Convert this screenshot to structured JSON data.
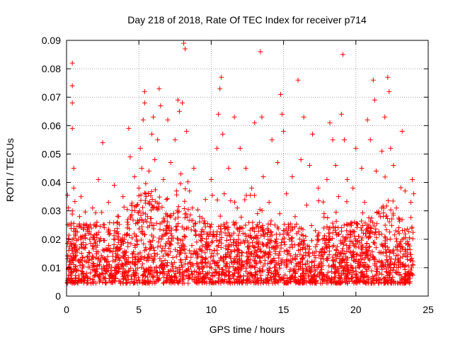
{
  "chart_data": {
    "type": "scatter",
    "title": "Day 218 of 2018, Rate Of TEC Index for receiver p714",
    "xlabel": "GPS time / hours",
    "ylabel": "ROTI / TECUs",
    "xlim": [
      0,
      25
    ],
    "ylim": [
      0,
      0.09
    ],
    "xticks": [
      0,
      5,
      10,
      15,
      20,
      25
    ],
    "xtick_labels": [
      "0",
      "5",
      "10",
      "15",
      "20",
      "25"
    ],
    "yticks": [
      0,
      0.01,
      0.02,
      0.03,
      0.04,
      0.05,
      0.06,
      0.07,
      0.08,
      0.09
    ],
    "ytick_labels": [
      "0",
      "0.01",
      "0.02",
      "0.03",
      "0.04",
      "0.05",
      "0.06",
      "0.07",
      "0.08",
      "0.09"
    ],
    "grid": true,
    "marker": "+",
    "color": "#ff0000",
    "series": [
      {
        "name": "ROTI",
        "points": [
          [
            0.1,
            0.006
          ],
          [
            0.2,
            0.012
          ],
          [
            0.3,
            0.018
          ],
          [
            0.3,
            0.025
          ],
          [
            0.4,
            0.03
          ],
          [
            0.4,
            0.059
          ],
          [
            0.4,
            0.068
          ],
          [
            0.4,
            0.074
          ],
          [
            0.4,
            0.082
          ],
          [
            0.5,
            0.045
          ],
          [
            0.5,
            0.038
          ],
          [
            0.6,
            0.014
          ],
          [
            0.7,
            0.009
          ],
          [
            0.8,
            0.02
          ],
          [
            0.9,
            0.028
          ],
          [
            1.0,
            0.035
          ],
          [
            1.1,
            0.011
          ],
          [
            1.2,
            0.017
          ],
          [
            1.4,
            0.008
          ],
          [
            1.5,
            0.024
          ],
          [
            1.6,
            0.013
          ],
          [
            1.8,
            0.031
          ],
          [
            1.9,
            0.007
          ],
          [
            2.0,
            0.019
          ],
          [
            2.1,
            0.026
          ],
          [
            2.2,
            0.041
          ],
          [
            2.3,
            0.012
          ],
          [
            2.5,
            0.054
          ],
          [
            2.6,
            0.016
          ],
          [
            2.8,
            0.009
          ],
          [
            2.9,
            0.033
          ],
          [
            3.0,
            0.022
          ],
          [
            3.2,
            0.014
          ],
          [
            3.3,
            0.039
          ],
          [
            3.5,
            0.011
          ],
          [
            3.6,
            0.028
          ],
          [
            3.8,
            0.018
          ],
          [
            3.9,
            0.035
          ],
          [
            4.0,
            0.008
          ],
          [
            4.2,
            0.024
          ],
          [
            4.3,
            0.059
          ],
          [
            4.4,
            0.049
          ],
          [
            4.5,
            0.032
          ],
          [
            4.6,
            0.015
          ],
          [
            4.7,
            0.042
          ],
          [
            4.8,
            0.021
          ],
          [
            4.9,
            0.012
          ],
          [
            5.0,
            0.038
          ],
          [
            5.1,
            0.052
          ],
          [
            5.2,
            0.045
          ],
          [
            5.3,
            0.062
          ],
          [
            5.4,
            0.072
          ],
          [
            5.4,
            0.068
          ],
          [
            5.5,
            0.035
          ],
          [
            5.6,
            0.028
          ],
          [
            5.7,
            0.044
          ],
          [
            5.8,
            0.019
          ],
          [
            5.9,
            0.057
          ],
          [
            6.0,
            0.063
          ],
          [
            6.1,
            0.048
          ],
          [
            6.2,
            0.031
          ],
          [
            6.3,
            0.055
          ],
          [
            6.4,
            0.073
          ],
          [
            6.5,
            0.067
          ],
          [
            6.6,
            0.026
          ],
          [
            6.7,
            0.041
          ],
          [
            6.8,
            0.016
          ],
          [
            6.9,
            0.034
          ],
          [
            7.0,
            0.062
          ],
          [
            7.1,
            0.023
          ],
          [
            7.2,
            0.047
          ],
          [
            7.3,
            0.011
          ],
          [
            7.4,
            0.029
          ],
          [
            7.5,
            0.055
          ],
          [
            7.6,
            0.037
          ],
          [
            7.7,
            0.069
          ],
          [
            7.8,
            0.065
          ],
          [
            7.9,
            0.043
          ],
          [
            8.0,
            0.068
          ],
          [
            8.1,
            0.089
          ],
          [
            8.2,
            0.087
          ],
          [
            8.3,
            0.058
          ],
          [
            8.4,
            0.024
          ],
          [
            8.5,
            0.037
          ],
          [
            8.6,
            0.015
          ],
          [
            8.7,
            0.031
          ],
          [
            8.8,
            0.045
          ],
          [
            9.0,
            0.019
          ],
          [
            9.2,
            0.028
          ],
          [
            9.4,
            0.012
          ],
          [
            9.6,
            0.034
          ],
          [
            9.8,
            0.021
          ],
          [
            10.0,
            0.041
          ],
          [
            10.2,
            0.016
          ],
          [
            10.4,
            0.052
          ],
          [
            10.5,
            0.064
          ],
          [
            10.6,
            0.073
          ],
          [
            10.7,
            0.077
          ],
          [
            10.8,
            0.057
          ],
          [
            10.9,
            0.036
          ],
          [
            11.0,
            0.024
          ],
          [
            11.2,
            0.045
          ],
          [
            11.4,
            0.018
          ],
          [
            11.6,
            0.063
          ],
          [
            11.8,
            0.031
          ],
          [
            12.0,
            0.052
          ],
          [
            12.2,
            0.022
          ],
          [
            12.4,
            0.045
          ],
          [
            12.6,
            0.014
          ],
          [
            12.8,
            0.038
          ],
          [
            13.0,
            0.061
          ],
          [
            13.2,
            0.029
          ],
          [
            13.4,
            0.086
          ],
          [
            13.5,
            0.063
          ],
          [
            13.6,
            0.042
          ],
          [
            13.8,
            0.018
          ],
          [
            14.0,
            0.033
          ],
          [
            14.2,
            0.055
          ],
          [
            14.4,
            0.025
          ],
          [
            14.6,
            0.047
          ],
          [
            14.8,
            0.071
          ],
          [
            14.9,
            0.064
          ],
          [
            15.0,
            0.058
          ],
          [
            15.2,
            0.036
          ],
          [
            15.4,
            0.015
          ],
          [
            15.6,
            0.042
          ],
          [
            15.8,
            0.028
          ],
          [
            16.0,
            0.076
          ],
          [
            16.2,
            0.048
          ],
          [
            16.4,
            0.063
          ],
          [
            16.6,
            0.032
          ],
          [
            16.8,
            0.046
          ],
          [
            17.0,
            0.057
          ],
          [
            17.2,
            0.023
          ],
          [
            17.4,
            0.038
          ],
          [
            17.6,
            0.012
          ],
          [
            17.8,
            0.029
          ],
          [
            18.0,
            0.041
          ],
          [
            18.2,
            0.061
          ],
          [
            18.4,
            0.055
          ],
          [
            18.6,
            0.046
          ],
          [
            18.8,
            0.035
          ],
          [
            19.0,
            0.064
          ],
          [
            19.1,
            0.085
          ],
          [
            19.2,
            0.055
          ],
          [
            19.4,
            0.041
          ],
          [
            19.6,
            0.025
          ],
          [
            19.8,
            0.038
          ],
          [
            20.0,
            0.052
          ],
          [
            20.2,
            0.021
          ],
          [
            20.4,
            0.045
          ],
          [
            20.6,
            0.033
          ],
          [
            20.8,
            0.062
          ],
          [
            21.0,
            0.055
          ],
          [
            21.2,
            0.076
          ],
          [
            21.3,
            0.069
          ],
          [
            21.4,
            0.044
          ],
          [
            21.6,
            0.029
          ],
          [
            21.8,
            0.051
          ],
          [
            22.0,
            0.063
          ],
          [
            22.2,
            0.077
          ],
          [
            22.3,
            0.072
          ],
          [
            22.4,
            0.052
          ],
          [
            22.6,
            0.046
          ],
          [
            22.8,
            0.031
          ],
          [
            23.0,
            0.022
          ],
          [
            23.2,
            0.058
          ],
          [
            23.4,
            0.037
          ],
          [
            23.6,
            0.018
          ],
          [
            23.8,
            0.033
          ],
          [
            23.9,
            0.041
          ],
          [
            24.0,
            0.036
          ]
        ]
      }
    ]
  }
}
